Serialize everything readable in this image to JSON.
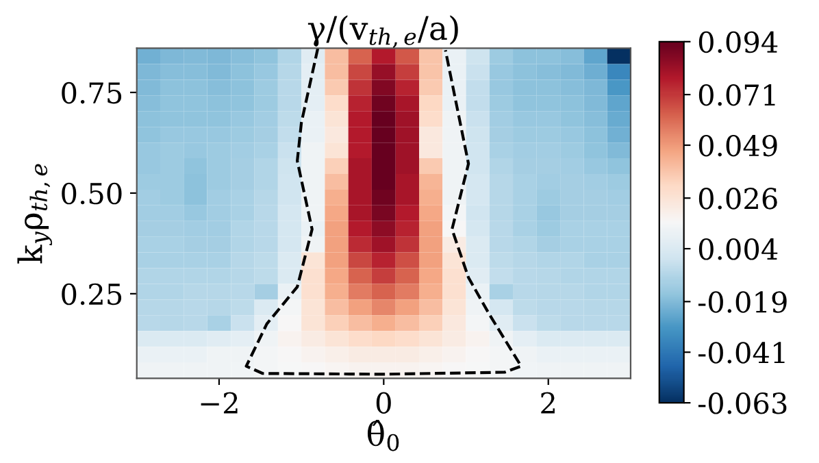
{
  "chart_data": {
    "type": "heatmap",
    "title": "γ/(v$_{th,e}$/a)",
    "xlabel": "θ̂$_{0}$",
    "ylabel": "k$_{y}$ρ$_{th,e}$",
    "x": [
      -2.86,
      -2.57,
      -2.29,
      -2.0,
      -1.71,
      -1.43,
      -1.14,
      -0.86,
      -0.57,
      -0.29,
      0,
      0.29,
      0.57,
      0.86,
      1.14,
      1.43,
      1.71,
      2.0,
      2.29,
      2.57,
      2.86
    ],
    "y": [
      0.84,
      0.801,
      0.762,
      0.723,
      0.684,
      0.645,
      0.606,
      0.567,
      0.528,
      0.489,
      0.45,
      0.411,
      0.372,
      0.333,
      0.294,
      0.255,
      0.216,
      0.177,
      0.138,
      0.099,
      0.06
    ],
    "cells": [
      [
        -0.022,
        -0.02,
        -0.019,
        -0.02,
        -0.018,
        -0.016,
        -0.008,
        0.006,
        0.04,
        0.062,
        0.078,
        0.064,
        0.038,
        0.01,
        -0.001,
        -0.013,
        -0.017,
        -0.017,
        -0.018,
        -0.026,
        -0.063
      ],
      [
        -0.02,
        -0.018,
        -0.018,
        -0.019,
        -0.017,
        -0.014,
        -0.007,
        0.008,
        0.04,
        0.068,
        0.084,
        0.07,
        0.038,
        0.01,
        -0.002,
        -0.014,
        -0.017,
        -0.018,
        -0.019,
        -0.023,
        -0.036
      ],
      [
        -0.019,
        -0.017,
        -0.017,
        -0.018,
        -0.017,
        -0.013,
        -0.006,
        0.008,
        0.036,
        0.072,
        0.088,
        0.076,
        0.036,
        0.01,
        -0.004,
        -0.014,
        -0.017,
        -0.017,
        -0.018,
        -0.02,
        -0.03
      ],
      [
        -0.018,
        -0.016,
        -0.016,
        -0.017,
        -0.016,
        -0.013,
        -0.006,
        0.008,
        0.03,
        0.076,
        0.092,
        0.08,
        0.032,
        0.01,
        -0.004,
        -0.013,
        -0.016,
        -0.016,
        -0.017,
        -0.019,
        -0.026
      ],
      [
        -0.017,
        -0.016,
        -0.016,
        -0.016,
        -0.014,
        -0.012,
        -0.005,
        0.01,
        0.026,
        0.078,
        0.094,
        0.082,
        0.03,
        0.012,
        -0.002,
        -0.012,
        -0.014,
        -0.014,
        -0.016,
        -0.018,
        -0.024
      ],
      [
        -0.016,
        -0.014,
        -0.014,
        -0.014,
        -0.013,
        -0.011,
        -0.004,
        0.01,
        0.024,
        0.078,
        0.094,
        0.082,
        0.024,
        0.012,
        -0.001,
        -0.011,
        -0.013,
        -0.013,
        -0.014,
        -0.017,
        -0.022
      ],
      [
        -0.014,
        -0.013,
        -0.014,
        -0.013,
        -0.012,
        -0.01,
        -0.002,
        0.012,
        0.026,
        0.078,
        0.094,
        0.082,
        0.024,
        0.012,
        0.0,
        -0.01,
        -0.012,
        -0.012,
        -0.013,
        -0.016,
        -0.019
      ],
      [
        -0.014,
        -0.013,
        -0.016,
        -0.013,
        -0.011,
        -0.008,
        -0.001,
        0.012,
        0.034,
        0.08,
        0.094,
        0.082,
        0.036,
        0.012,
        0.0,
        -0.008,
        -0.011,
        -0.011,
        -0.012,
        -0.014,
        -0.016
      ],
      [
        -0.013,
        -0.013,
        -0.017,
        -0.013,
        -0.011,
        -0.008,
        0.0,
        0.012,
        0.04,
        0.08,
        0.094,
        0.08,
        0.042,
        0.012,
        0.002,
        -0.007,
        -0.01,
        -0.012,
        -0.011,
        -0.012,
        -0.013
      ],
      [
        -0.012,
        -0.013,
        -0.017,
        -0.012,
        -0.01,
        -0.007,
        0.0,
        0.012,
        0.044,
        0.08,
        0.092,
        0.08,
        0.044,
        0.012,
        0.002,
        -0.007,
        -0.01,
        -0.013,
        -0.011,
        -0.011,
        -0.012
      ],
      [
        -0.012,
        -0.012,
        -0.014,
        -0.012,
        -0.01,
        -0.006,
        0.002,
        0.012,
        0.046,
        0.08,
        0.09,
        0.078,
        0.046,
        0.014,
        0.0,
        -0.007,
        -0.01,
        -0.014,
        -0.011,
        -0.011,
        -0.011
      ],
      [
        -0.011,
        -0.011,
        -0.012,
        -0.012,
        -0.008,
        -0.006,
        0.002,
        0.01,
        0.048,
        0.078,
        0.086,
        0.076,
        0.048,
        0.016,
        0.002,
        -0.006,
        -0.01,
        -0.013,
        -0.01,
        -0.01,
        -0.01
      ],
      [
        -0.01,
        -0.01,
        -0.011,
        -0.011,
        -0.008,
        -0.006,
        0.002,
        0.012,
        0.048,
        0.074,
        0.082,
        0.072,
        0.048,
        0.022,
        0.004,
        -0.006,
        -0.008,
        -0.011,
        -0.01,
        -0.01,
        -0.01
      ],
      [
        -0.01,
        -0.01,
        -0.01,
        -0.01,
        -0.007,
        -0.005,
        0.004,
        0.026,
        0.048,
        0.068,
        0.076,
        0.066,
        0.048,
        0.026,
        0.004,
        -0.005,
        -0.007,
        -0.008,
        -0.008,
        -0.01,
        -0.01
      ],
      [
        -0.008,
        -0.008,
        -0.008,
        -0.008,
        -0.007,
        -0.005,
        0.004,
        0.028,
        0.046,
        0.062,
        0.07,
        0.062,
        0.046,
        0.028,
        0.006,
        -0.004,
        -0.006,
        -0.007,
        -0.008,
        -0.008,
        -0.008
      ],
      [
        -0.008,
        -0.008,
        -0.007,
        -0.007,
        -0.006,
        -0.011,
        0.01,
        0.028,
        0.044,
        0.056,
        0.062,
        0.056,
        0.044,
        0.028,
        0.01,
        -0.01,
        -0.006,
        -0.007,
        -0.007,
        -0.008,
        -0.008
      ],
      [
        -0.007,
        -0.007,
        -0.006,
        -0.007,
        -0.005,
        0.004,
        0.014,
        0.026,
        0.04,
        0.048,
        0.054,
        0.048,
        0.04,
        0.026,
        0.012,
        0.002,
        -0.005,
        -0.006,
        -0.006,
        -0.007,
        -0.007
      ],
      [
        -0.006,
        -0.007,
        -0.006,
        -0.01,
        -0.002,
        0.008,
        0.016,
        0.026,
        0.034,
        0.04,
        0.044,
        0.04,
        0.034,
        0.024,
        0.014,
        0.006,
        -0.002,
        -0.005,
        -0.006,
        -0.006,
        -0.006
      ],
      [
        0.004,
        0.004,
        0.004,
        0.006,
        0.008,
        0.012,
        0.018,
        0.022,
        0.026,
        0.03,
        0.032,
        0.03,
        0.026,
        0.022,
        0.018,
        0.012,
        0.008,
        0.004,
        0.004,
        0.004,
        0.004
      ],
      [
        0.01,
        0.01,
        0.01,
        0.012,
        0.012,
        0.014,
        0.016,
        0.018,
        0.02,
        0.022,
        0.022,
        0.022,
        0.02,
        0.018,
        0.016,
        0.014,
        0.012,
        0.01,
        0.01,
        0.01,
        0.01
      ],
      [
        0.012,
        0.012,
        0.012,
        0.012,
        0.013,
        0.014,
        0.015,
        0.016,
        0.017,
        0.018,
        0.018,
        0.018,
        0.017,
        0.016,
        0.015,
        0.014,
        0.013,
        0.012,
        0.012,
        0.012,
        0.012
      ]
    ],
    "series": [
      {
        "type": "line",
        "color": "#000000",
        "line_style": "dashed",
        "x": [
          -0.8,
          -1.0,
          -1.05,
          -0.87,
          -1.05,
          -1.42,
          -1.67,
          -1.47,
          0,
          1.47,
          1.67,
          1.28,
          1.03,
          0.83,
          1.03,
          0.75
        ],
        "values": [
          0.86,
          0.675,
          0.58,
          0.41,
          0.267,
          0.175,
          0.07,
          0.052,
          0.05,
          0.055,
          0.07,
          0.2,
          0.29,
          0.41,
          0.573,
          0.855
        ]
      }
    ],
    "xlim": [
      -3,
      3
    ],
    "ylim": [
      0.04,
      0.86
    ],
    "xticks": [
      {
        "value": -2,
        "label": "−2"
      },
      0,
      2
    ],
    "yticks": [
      {
        "value": 0.25,
        "label": "0.25"
      },
      {
        "value": 0.5,
        "label": "0.50"
      },
      {
        "value": 0.75,
        "label": "0.75"
      }
    ],
    "clim": [
      -0.063,
      0.094
    ],
    "cticks": [
      0.094,
      0.071,
      0.049,
      0.026,
      0.004,
      {
        "value": -0.019,
        "label": "-0.019"
      },
      {
        "value": -0.041,
        "label": "-0.041"
      },
      {
        "value": -0.063,
        "label": "-0.063"
      }
    ],
    "grid": false
  }
}
